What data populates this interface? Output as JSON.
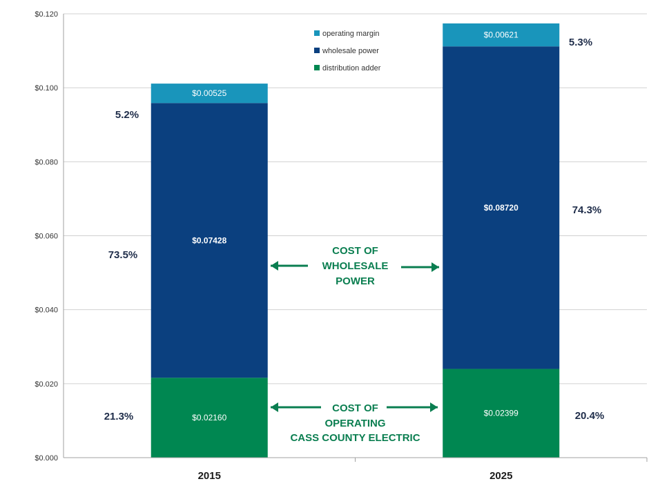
{
  "chart_data": {
    "type": "bar",
    "stacked": true,
    "categories": [
      "2015",
      "2025"
    ],
    "series": [
      {
        "name": "distribution adder",
        "values": [
          0.0216,
          0.02399
        ],
        "labels": [
          "$0.02160",
          "$0.02399"
        ],
        "color": "#008751"
      },
      {
        "name": "wholesale power",
        "values": [
          0.07428,
          0.0872
        ],
        "labels": [
          "$0.07428",
          "$0.08720"
        ],
        "color": "#0b407f"
      },
      {
        "name": "operating margin",
        "values": [
          0.00525,
          0.00621
        ],
        "labels": [
          "$0.00525",
          "$0.00621"
        ],
        "color": "#1995bb"
      }
    ],
    "legend_order": [
      "operating margin",
      "wholesale power",
      "distribution adder"
    ],
    "percentages": {
      "2015": {
        "operating margin": "5.2%",
        "wholesale power": "73.5%",
        "distribution adder": "21.3%"
      },
      "2025": {
        "operating margin": "5.3%",
        "wholesale power": "74.3%",
        "distribution adder": "20.4%"
      }
    },
    "ylim": [
      0,
      0.12
    ],
    "yticks": [
      "$0.000",
      "$0.020",
      "$0.040",
      "$0.060",
      "$0.080",
      "$0.100",
      "$0.120"
    ],
    "grid": true,
    "legend_position": "top-center",
    "annotations": {
      "wholesale": [
        "COST OF",
        "WHOLESALE",
        "POWER"
      ],
      "operating": [
        "COST OF",
        "OPERATING",
        "CASS COUNTY ELECTRIC"
      ]
    }
  },
  "colors": {
    "annotation": "#0a7e50",
    "grid": "#d0d0d0",
    "axis": "#a0a0a0"
  }
}
